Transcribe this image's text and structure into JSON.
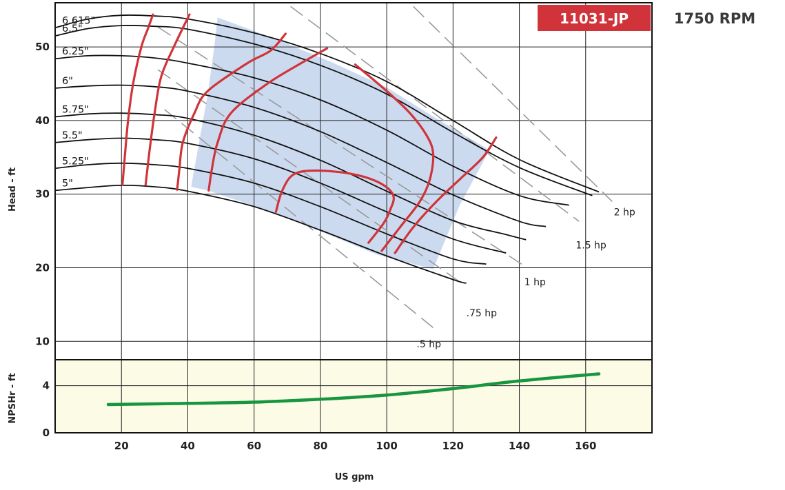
{
  "chart_data": {
    "type": "line",
    "title": "",
    "model_label": "11031-JP",
    "speed_label": "1750 RPM",
    "xlabel": "US gpm",
    "x_ticks": [
      "20",
      "40",
      "60",
      "80",
      "100",
      "120",
      "140",
      "160"
    ],
    "xlim": [
      0,
      180
    ],
    "head_panel": {
      "ylabel": "Head - ft",
      "ylim": [
        7.5,
        56
      ],
      "y_ticks": [
        "10",
        "20",
        "30",
        "40",
        "50"
      ],
      "grid": true,
      "impeller_curves": [
        {
          "name": "6.615\"",
          "points": [
            [
              0,
              52.6
            ],
            [
              10,
              53.8
            ],
            [
              20,
              54.3
            ],
            [
              30,
              54.2
            ],
            [
              40,
              53.8
            ],
            [
              60,
              51.9
            ],
            [
              80,
              49.1
            ],
            [
              100,
              45.3
            ],
            [
              120,
              40.0
            ],
            [
              140,
              34.7
            ],
            [
              164,
              30.3
            ]
          ]
        },
        {
          "name": "6.5\"",
          "points": [
            [
              0,
              51.5
            ],
            [
              10,
              52.5
            ],
            [
              20,
              52.9
            ],
            [
              30,
              52.8
            ],
            [
              40,
              52.4
            ],
            [
              60,
              50.4
            ],
            [
              80,
              47.5
            ],
            [
              100,
              43.6
            ],
            [
              120,
              38.4
            ],
            [
              140,
              33.6
            ],
            [
              162,
              29.8
            ]
          ]
        },
        {
          "name": "6.25\"",
          "points": [
            [
              0,
              48.4
            ],
            [
              10,
              48.8
            ],
            [
              20,
              48.8
            ],
            [
              30,
              48.5
            ],
            [
              40,
              47.8
            ],
            [
              60,
              45.8
            ],
            [
              80,
              42.8
            ],
            [
              100,
              38.7
            ],
            [
              120,
              33.8
            ],
            [
              140,
              29.8
            ],
            [
              155,
              28.5
            ]
          ]
        },
        {
          "name": "6\"",
          "points": [
            [
              0,
              44.4
            ],
            [
              10,
              44.7
            ],
            [
              20,
              44.8
            ],
            [
              30,
              44.6
            ],
            [
              40,
              44.0
            ],
            [
              60,
              41.8
            ],
            [
              80,
              38.5
            ],
            [
              100,
              34.3
            ],
            [
              120,
              29.9
            ],
            [
              140,
              26.3
            ],
            [
              148,
              25.6
            ]
          ]
        },
        {
          "name": "5.75\"",
          "points": [
            [
              0,
              40.5
            ],
            [
              10,
              40.9
            ],
            [
              20,
              41.0
            ],
            [
              30,
              40.8
            ],
            [
              40,
              40.3
            ],
            [
              60,
              38.0
            ],
            [
              80,
              34.6
            ],
            [
              100,
              30.4
            ],
            [
              120,
              26.4
            ],
            [
              136,
              24.5
            ],
            [
              142,
              23.8
            ]
          ]
        },
        {
          "name": "5.5\"",
          "points": [
            [
              0,
              37.0
            ],
            [
              10,
              37.4
            ],
            [
              20,
              37.6
            ],
            [
              30,
              37.4
            ],
            [
              40,
              36.9
            ],
            [
              60,
              34.8
            ],
            [
              80,
              31.5
            ],
            [
              100,
              27.6
            ],
            [
              120,
              23.9
            ],
            [
              136,
              22.0
            ]
          ]
        },
        {
          "name": "5.25\"",
          "points": [
            [
              0,
              33.5
            ],
            [
              10,
              34.0
            ],
            [
              20,
              34.2
            ],
            [
              30,
              34.0
            ],
            [
              40,
              33.5
            ],
            [
              60,
              31.5
            ],
            [
              80,
              28.3
            ],
            [
              100,
              24.6
            ],
            [
              120,
              21.2
            ],
            [
              130,
              20.5
            ]
          ]
        },
        {
          "name": "5\"",
          "points": [
            [
              0,
              30.5
            ],
            [
              10,
              30.9
            ],
            [
              20,
              31.2
            ],
            [
              30,
              31.0
            ],
            [
              40,
              30.4
            ],
            [
              60,
              28.3
            ],
            [
              80,
              25.1
            ],
            [
              100,
              21.6
            ],
            [
              120,
              18.4
            ],
            [
              124,
              17.9
            ]
          ]
        }
      ],
      "efficiency_curves": [
        {
          "points": [
            [
              20.3,
              31.3
            ],
            [
              21,
              35
            ],
            [
              22,
              40
            ],
            [
              23.5,
              45
            ],
            [
              26,
              50
            ],
            [
              28,
              52.5
            ],
            [
              29.5,
              54.4
            ]
          ]
        },
        {
          "points": [
            [
              27.3,
              31.3
            ],
            [
              28.5,
              36
            ],
            [
              30,
              41
            ],
            [
              32,
              46
            ],
            [
              36,
              50.2
            ],
            [
              40.5,
              54.4
            ]
          ]
        },
        {
          "points": [
            [
              36.8,
              30.6
            ],
            [
              37.5,
              33.5
            ],
            [
              38.5,
              37
            ],
            [
              42,
              41
            ],
            [
              46,
              44
            ],
            [
              58,
              47.8
            ],
            [
              65,
              49.5
            ],
            [
              69.5,
              51.8
            ]
          ]
        },
        {
          "points": [
            [
              46.3,
              30.5
            ],
            [
              47.3,
              33.5
            ],
            [
              49,
              37
            ],
            [
              53,
              41
            ],
            [
              64,
              45
            ],
            [
              75,
              48
            ],
            [
              82,
              49.8
            ]
          ]
        },
        {
          "points": [
            [
              66.6,
              27.6
            ],
            [
              68.5,
              30.5
            ],
            [
              72,
              32.7
            ],
            [
              79,
              33.2
            ],
            [
              90,
              32.7
            ],
            [
              98,
              31.5
            ],
            [
              102,
              29.8
            ],
            [
              101,
              27.8
            ],
            [
              99,
              26.0
            ],
            [
              94.5,
              23.4
            ]
          ]
        },
        {
          "points": [
            [
              90.5,
              47.6
            ],
            [
              100,
              44
            ],
            [
              107,
              41
            ],
            [
              112,
              38
            ],
            [
              114,
              35.5
            ],
            [
              113,
              32
            ],
            [
              110,
              29
            ],
            [
              104,
              25.5
            ],
            [
              98.5,
              22.3
            ]
          ]
        },
        {
          "points": [
            [
              102.5,
              22.0
            ],
            [
              108,
              25.5
            ],
            [
              115,
              29
            ],
            [
              122,
              32
            ],
            [
              129,
              35
            ],
            [
              133,
              37.7
            ]
          ]
        }
      ],
      "preferred_range_region": [
        [
          49,
          54
        ],
        [
          67,
          51
        ],
        [
          83,
          48
        ],
        [
          100,
          44.5
        ],
        [
          116,
          40
        ],
        [
          131,
          36
        ],
        [
          122,
          28.5
        ],
        [
          114,
          19.8
        ],
        [
          97,
          21.8
        ],
        [
          82,
          24.6
        ],
        [
          62,
          28.1
        ],
        [
          46,
          30.5
        ],
        [
          41,
          31.0
        ],
        [
          43,
          36
        ],
        [
          46,
          43.5
        ],
        [
          48,
          50
        ]
      ],
      "power_lines": [
        {
          "name": ".5 hp",
          "points": [
            [
              33,
              41.5
            ],
            [
              115,
              11.5
            ]
          ],
          "label_at": [
            109,
            9.2
          ]
        },
        {
          "name": ".75 hp",
          "points": [
            [
              31,
              46.9
            ],
            [
              123.5,
              17.6
            ]
          ],
          "label_at": [
            124,
            13.4
          ]
        },
        {
          "name": "1 hp",
          "points": [
            [
              31,
              52.7
            ],
            [
              141,
              20.4
            ]
          ],
          "label_at": [
            141.5,
            17.6
          ]
        },
        {
          "name": "1.5 hp",
          "points": [
            [
              71,
              55.5
            ],
            [
              158,
              26.3
            ]
          ],
          "label_at": [
            157,
            22.6
          ]
        },
        {
          "name": "2 hp",
          "points": [
            [
              108,
              55.5
            ],
            [
              168,
              29.0
            ]
          ],
          "label_at": [
            168.5,
            27.1
          ]
        }
      ]
    },
    "npsh_panel": {
      "ylabel": "NPSHr - ft",
      "ylim": [
        0,
        6.2
      ],
      "y_ticks": [
        "0",
        "4"
      ],
      "series": [
        {
          "name": "",
          "points": [
            [
              16,
              2.4
            ],
            [
              40,
              2.5
            ],
            [
              60,
              2.6
            ],
            [
              80,
              2.85
            ],
            [
              100,
              3.2
            ],
            [
              120,
              3.75
            ],
            [
              140,
              4.4
            ],
            [
              164,
              5.0
            ]
          ]
        }
      ]
    },
    "colors": {
      "impeller": "#111111",
      "efficiency": "#d0343a",
      "power": "#9a9a9a",
      "region": "#ccdaf0",
      "npsh": "#17963f",
      "npsh_bg": "#fcfbe6",
      "model_badge": "#d0343a"
    }
  }
}
